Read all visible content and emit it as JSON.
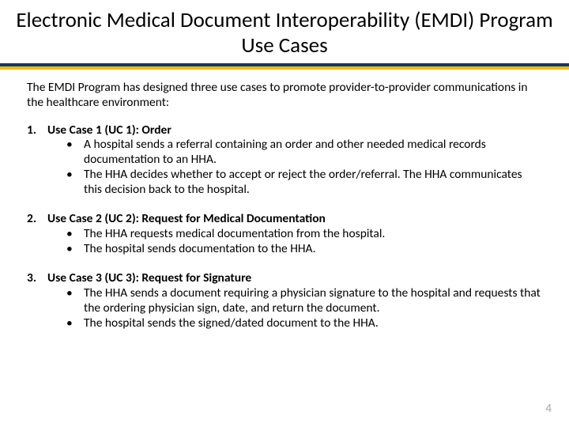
{
  "colors": {
    "title_underline": "#13386c",
    "accent_bar": "#f2b90f",
    "text": "#000000",
    "page_num": "#a6a6a6",
    "background": "#ffffff"
  },
  "typography": {
    "title_fontsize": 27,
    "body_fontsize": 15.5,
    "pagenum_fontsize": 15,
    "font_family": "Calibri"
  },
  "title": "Electronic Medical Document Interoperability (EMDI) Program Use Cases",
  "intro": "The EMDI Program has designed three use cases to promote provider-to-provider communications in the healthcare environment:",
  "use_cases": [
    {
      "heading": "Use Case 1 (UC 1): Order",
      "bullets": [
        "A hospital sends a referral containing an order and other needed medical records documentation to an HHA.",
        "The HHA decides whether to accept or reject the order/referral. The HHA communicates this decision back to the hospital."
      ]
    },
    {
      "heading": "Use Case 2 (UC 2): Request for Medical Documentation",
      "bullets": [
        "The HHA requests medical documentation from the hospital.",
        "The hospital sends documentation to the HHA."
      ]
    },
    {
      "heading": "Use Case 3 (UC 3): Request for Signature",
      "bullets": [
        "The HHA sends a document requiring a physician signature to the hospital and requests that the ordering physician sign, date, and return the document.",
        "The hospital sends the signed/dated document to the HHA."
      ]
    }
  ],
  "page_number": "4"
}
